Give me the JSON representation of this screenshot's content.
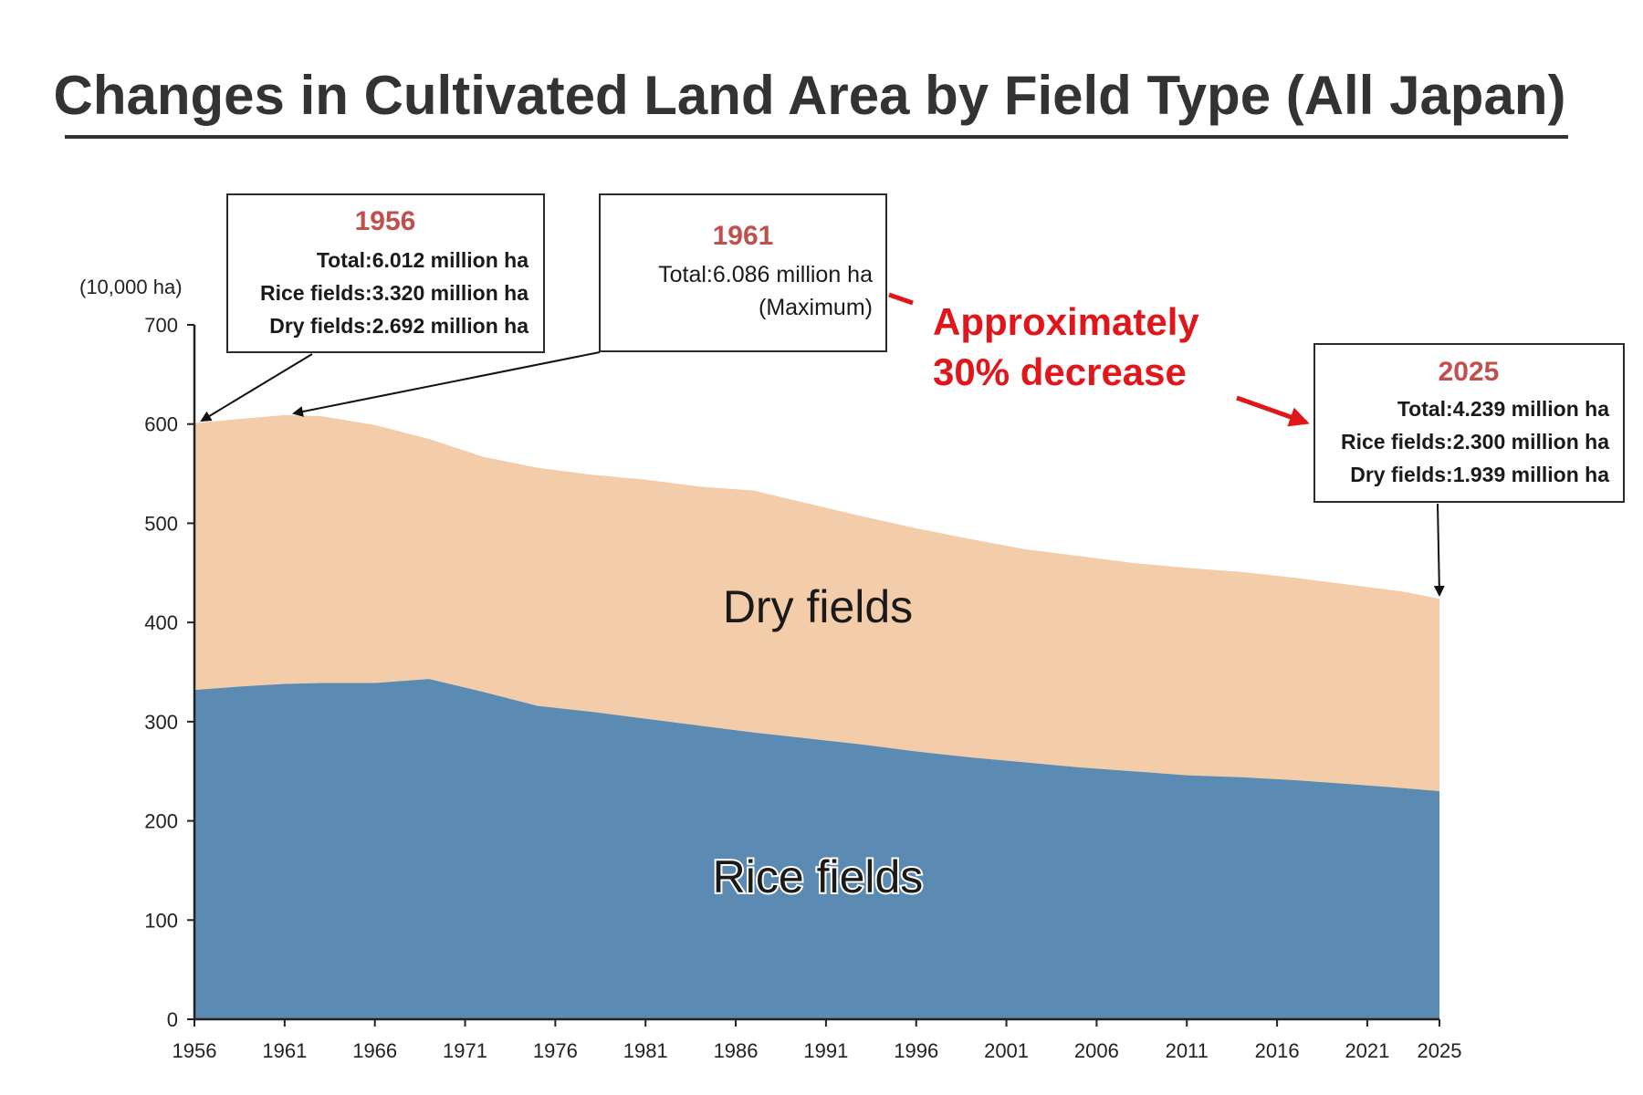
{
  "chart_data": {
    "type": "area",
    "stacked": true,
    "title": "Changes in Cultivated Land Area by Field Type (All Japan)",
    "unit_label": "(10,000 ha)",
    "ylim": [
      0,
      700
    ],
    "yticks": [
      0,
      100,
      200,
      300,
      400,
      500,
      600,
      700
    ],
    "xticks": [
      "1956",
      "1961",
      "1966",
      "1971",
      "1976",
      "1981",
      "1986",
      "1991",
      "1996",
      "2001",
      "2006",
      "2011",
      "2016",
      "2021",
      "2025"
    ],
    "highlight_tick": "2025",
    "x": [
      1956,
      1959,
      1961,
      1963,
      1966,
      1969,
      1972,
      1975,
      1978,
      1981,
      1984,
      1987,
      1990,
      1993,
      1996,
      1999,
      2002,
      2005,
      2008,
      2011,
      2014,
      2017,
      2020,
      2023,
      2025
    ],
    "series": [
      {
        "name": "Rice fields",
        "color": "#5b8ab3",
        "values": [
          332,
          336,
          338,
          339,
          339,
          343,
          330,
          316,
          310,
          303,
          296,
          289,
          283,
          277,
          270,
          264,
          259,
          254,
          250,
          246,
          244,
          241,
          237,
          233,
          230
        ]
      },
      {
        "name": "Dry fields",
        "color": "#f3cda9",
        "values": [
          269,
          270,
          271,
          269,
          260,
          242,
          237,
          240,
          239,
          241,
          241,
          244,
          237,
          230,
          225,
          220,
          215,
          213,
          210,
          209,
          207,
          204,
          201,
          198,
          194
        ]
      }
    ],
    "annotations": [
      {
        "year": "1956",
        "lines": [
          "Total:6.012 million ha",
          "Rice fields:3.320 million ha",
          "Dry fields:2.692 million ha"
        ]
      },
      {
        "year": "1961",
        "lines": [
          "Total:6.086 million ha",
          "(Maximum)"
        ]
      },
      {
        "year": "2025",
        "lines": [
          "Total:4.239 million ha",
          "Rice fields:2.300 million ha",
          "Dry fields:1.939 million ha"
        ]
      }
    ],
    "decrease_text": [
      "Approximately",
      "30% decrease"
    ],
    "decrease_color": "#e0161b",
    "annotation_year_color": "#c0504d"
  }
}
